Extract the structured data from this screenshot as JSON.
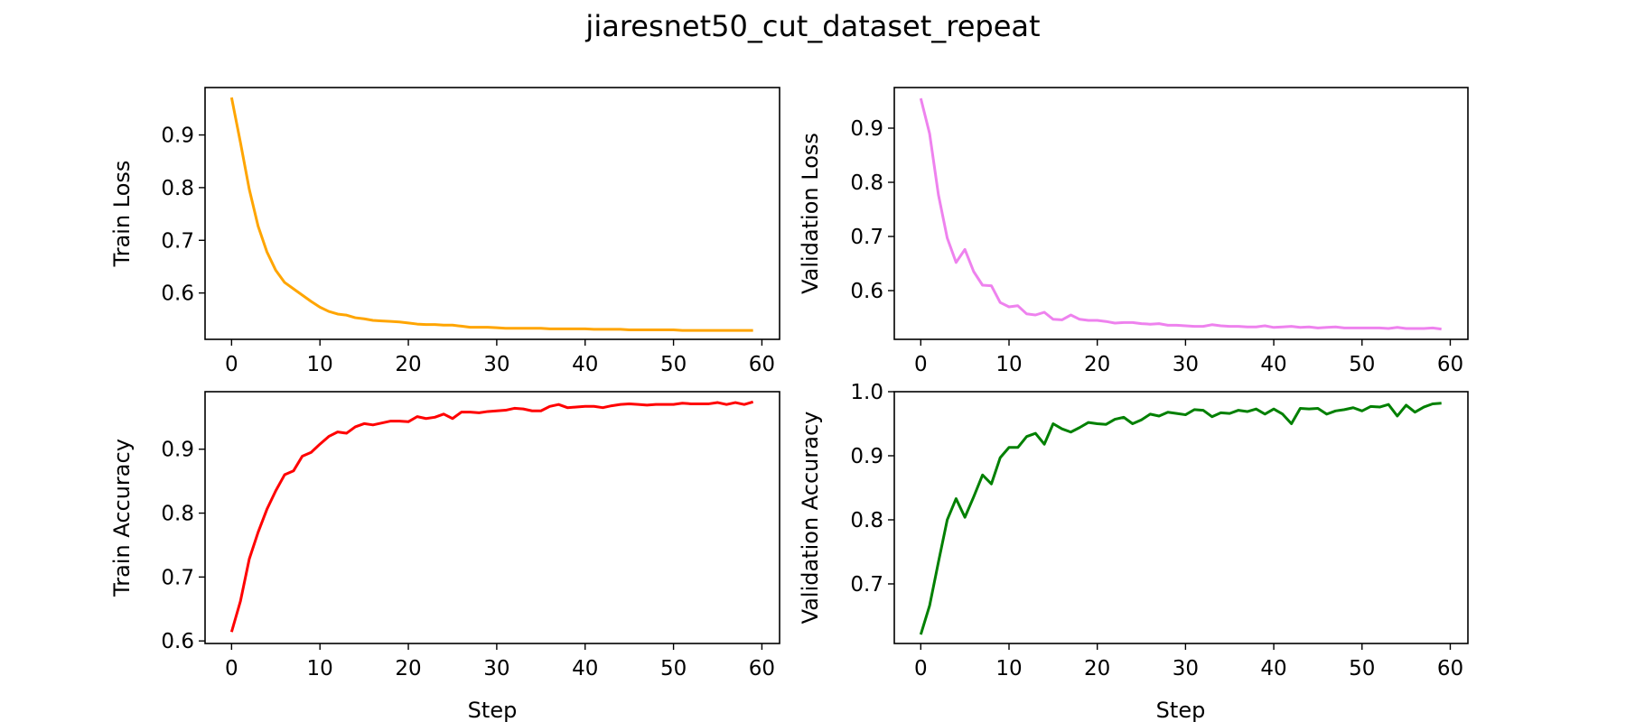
{
  "title": "jiaresnet50_cut_dataset_repeat",
  "chart_data": [
    {
      "type": "line",
      "title": "",
      "xlabel": "",
      "ylabel": "Train Loss",
      "xlim": [
        -3,
        62
      ],
      "ylim": [
        0.512,
        0.99
      ],
      "xticks": [
        0,
        10,
        20,
        30,
        40,
        50,
        60
      ],
      "yticks": [
        0.6,
        0.7,
        0.8,
        0.9
      ],
      "color": "#ffa500",
      "series": [
        {
          "values": [
            0.971,
            0.886,
            0.797,
            0.727,
            0.678,
            0.643,
            0.62,
            0.608,
            0.596,
            0.584,
            0.573,
            0.565,
            0.56,
            0.558,
            0.553,
            0.551,
            0.548,
            0.547,
            0.546,
            0.545,
            0.543,
            0.541,
            0.54,
            0.54,
            0.539,
            0.539,
            0.537,
            0.535,
            0.535,
            0.535,
            0.534,
            0.533,
            0.533,
            0.533,
            0.533,
            0.533,
            0.532,
            0.532,
            0.532,
            0.532,
            0.532,
            0.531,
            0.531,
            0.531,
            0.531,
            0.53,
            0.53,
            0.53,
            0.53,
            0.53,
            0.53,
            0.529,
            0.529,
            0.529,
            0.529,
            0.529,
            0.529,
            0.529,
            0.529,
            0.529
          ]
        }
      ]
    },
    {
      "type": "line",
      "title": "",
      "xlabel": "",
      "ylabel": "Validation Loss",
      "xlim": [
        -3,
        62
      ],
      "ylim": [
        0.51,
        0.975
      ],
      "xticks": [
        0,
        10,
        20,
        30,
        40,
        50,
        60
      ],
      "yticks": [
        0.6,
        0.7,
        0.8,
        0.9
      ],
      "color": "#ee82ee",
      "series": [
        {
          "values": [
            0.955,
            0.89,
            0.777,
            0.697,
            0.652,
            0.676,
            0.635,
            0.61,
            0.609,
            0.578,
            0.57,
            0.572,
            0.557,
            0.555,
            0.56,
            0.547,
            0.546,
            0.555,
            0.547,
            0.545,
            0.545,
            0.543,
            0.54,
            0.541,
            0.541,
            0.539,
            0.538,
            0.539,
            0.536,
            0.536,
            0.535,
            0.534,
            0.534,
            0.537,
            0.535,
            0.534,
            0.534,
            0.533,
            0.533,
            0.535,
            0.532,
            0.533,
            0.534,
            0.532,
            0.533,
            0.531,
            0.532,
            0.533,
            0.531,
            0.531,
            0.531,
            0.531,
            0.531,
            0.53,
            0.532,
            0.53,
            0.53,
            0.53,
            0.531,
            0.529
          ]
        }
      ]
    },
    {
      "type": "line",
      "title": "",
      "xlabel": "Step",
      "ylabel": "Train Accuracy",
      "xlim": [
        -3,
        62
      ],
      "ylim": [
        0.596,
        0.99
      ],
      "xticks": [
        0,
        10,
        20,
        30,
        40,
        50,
        60
      ],
      "yticks": [
        0.6,
        0.7,
        0.8,
        0.9
      ],
      "color": "#ff0000",
      "series": [
        {
          "values": [
            0.614,
            0.662,
            0.728,
            0.77,
            0.806,
            0.835,
            0.86,
            0.866,
            0.889,
            0.895,
            0.908,
            0.92,
            0.927,
            0.925,
            0.935,
            0.94,
            0.938,
            0.941,
            0.944,
            0.944,
            0.943,
            0.951,
            0.948,
            0.95,
            0.955,
            0.948,
            0.958,
            0.958,
            0.957,
            0.959,
            0.96,
            0.961,
            0.964,
            0.963,
            0.96,
            0.96,
            0.967,
            0.97,
            0.965,
            0.966,
            0.967,
            0.967,
            0.965,
            0.968,
            0.97,
            0.971,
            0.97,
            0.969,
            0.97,
            0.97,
            0.97,
            0.972,
            0.971,
            0.971,
            0.971,
            0.973,
            0.97,
            0.973,
            0.97,
            0.974
          ]
        }
      ]
    },
    {
      "type": "line",
      "title": "",
      "xlabel": "Step",
      "ylabel": "Validation Accuracy",
      "xlim": [
        -3,
        62
      ],
      "ylim": [
        0.607,
        1.0
      ],
      "xticks": [
        0,
        10,
        20,
        30,
        40,
        50,
        60
      ],
      "yticks": [
        0.7,
        0.8,
        0.9,
        1.0
      ],
      "color": "#008000",
      "series": [
        {
          "values": [
            0.621,
            0.666,
            0.734,
            0.8,
            0.833,
            0.804,
            0.836,
            0.87,
            0.856,
            0.897,
            0.913,
            0.913,
            0.93,
            0.935,
            0.918,
            0.95,
            0.942,
            0.937,
            0.944,
            0.952,
            0.95,
            0.949,
            0.957,
            0.96,
            0.95,
            0.956,
            0.965,
            0.962,
            0.968,
            0.966,
            0.964,
            0.972,
            0.971,
            0.961,
            0.967,
            0.966,
            0.971,
            0.969,
            0.973,
            0.965,
            0.973,
            0.965,
            0.95,
            0.974,
            0.973,
            0.974,
            0.965,
            0.97,
            0.972,
            0.975,
            0.97,
            0.977,
            0.976,
            0.98,
            0.962,
            0.979,
            0.968,
            0.976,
            0.981,
            0.982
          ]
        }
      ]
    }
  ]
}
